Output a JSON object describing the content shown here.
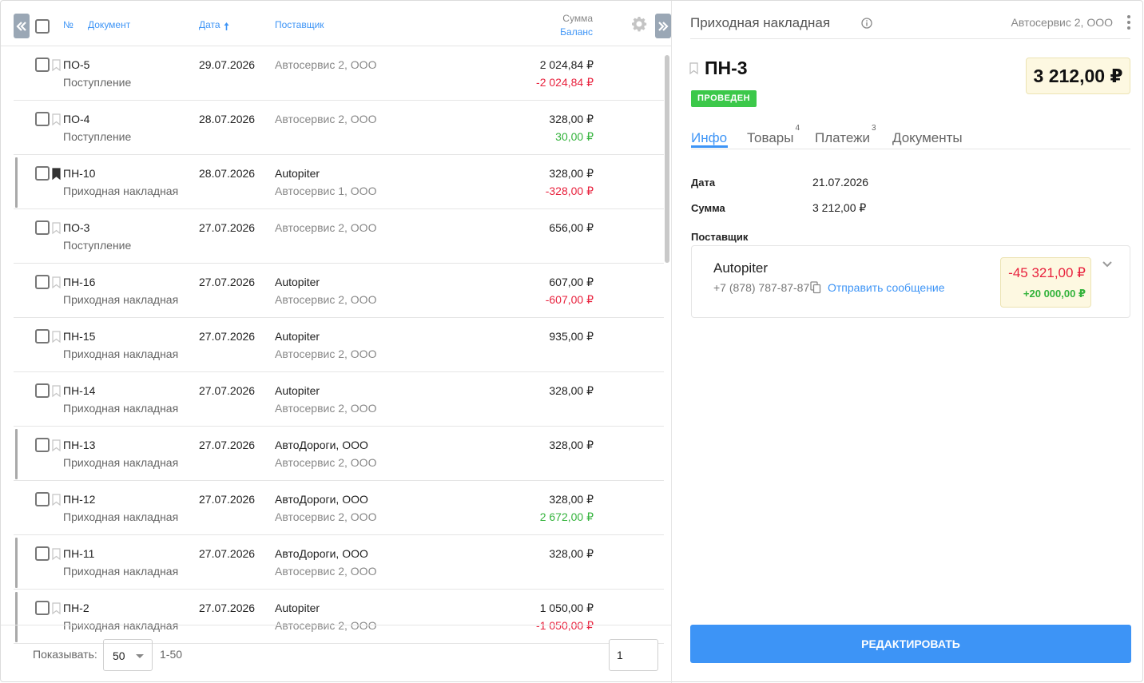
{
  "list": {
    "columns": {
      "number": "№",
      "document": "Документ",
      "date": "Дата",
      "date_sort_icon": "arrow-up-icon",
      "supplier": "Поставщик",
      "sum": "Сумма",
      "balance": "Баланс"
    },
    "rows": [
      {
        "number": "ПО-5",
        "type": "Поступление",
        "date": "29.07.2026",
        "supplier": "Автосервис 2, ООО",
        "supplier2": "",
        "sum": "2 024,84 ₽",
        "balance": "-2 024,84 ₽",
        "balance_sign": "neg",
        "marked": false,
        "bookmarked": false
      },
      {
        "number": "ПО-4",
        "type": "Поступление",
        "date": "28.07.2026",
        "supplier": "Автосервис 2, ООО",
        "supplier2": "",
        "sum": "328,00 ₽",
        "balance": "30,00 ₽",
        "balance_sign": "pos",
        "marked": false,
        "bookmarked": false
      },
      {
        "number": "ПН-10",
        "type": "Приходная накладная",
        "date": "28.07.2026",
        "supplier": "Autopiter",
        "supplier2": "Автосервис 1, ООО",
        "sum": "328,00 ₽",
        "balance": "-328,00 ₽",
        "balance_sign": "neg",
        "marked": true,
        "bookmarked": true
      },
      {
        "number": "ПО-3",
        "type": "Поступление",
        "date": "27.07.2026",
        "supplier": "Автосервис 2, ООО",
        "supplier2": "",
        "sum": "656,00 ₽",
        "balance": "",
        "balance_sign": "none",
        "marked": false,
        "bookmarked": false
      },
      {
        "number": "ПН-16",
        "type": "Приходная накладная",
        "date": "27.07.2026",
        "supplier": "Autopiter",
        "supplier2": "Автосервис 2, ООО",
        "sum": "607,00 ₽",
        "balance": "-607,00 ₽",
        "balance_sign": "neg",
        "marked": false,
        "bookmarked": false
      },
      {
        "number": "ПН-15",
        "type": "Приходная накладная",
        "date": "27.07.2026",
        "supplier": "Autopiter",
        "supplier2": "Автосервис 2, ООО",
        "sum": "935,00 ₽",
        "balance": "",
        "balance_sign": "none",
        "marked": false,
        "bookmarked": false
      },
      {
        "number": "ПН-14",
        "type": "Приходная накладная",
        "date": "27.07.2026",
        "supplier": "Autopiter",
        "supplier2": "Автосервис 2, ООО",
        "sum": "328,00 ₽",
        "balance": "",
        "balance_sign": "none",
        "marked": false,
        "bookmarked": false
      },
      {
        "number": "ПН-13",
        "type": "Приходная накладная",
        "date": "27.07.2026",
        "supplier": "АвтоДороги, ООО",
        "supplier2": "Автосервис 2, ООО",
        "sum": "328,00 ₽",
        "balance": "",
        "balance_sign": "none",
        "marked": true,
        "bookmarked": false
      },
      {
        "number": "ПН-12",
        "type": "Приходная накладная",
        "date": "27.07.2026",
        "supplier": "АвтоДороги, ООО",
        "supplier2": "Автосервис 2, ООО",
        "sum": "328,00 ₽",
        "balance": "2 672,00 ₽",
        "balance_sign": "pos",
        "marked": false,
        "bookmarked": false
      },
      {
        "number": "ПН-11",
        "type": "Приходная накладная",
        "date": "27.07.2026",
        "supplier": "АвтоДороги, ООО",
        "supplier2": "Автосервис 2, ООО",
        "sum": "328,00 ₽",
        "balance": "",
        "balance_sign": "none",
        "marked": true,
        "bookmarked": false
      },
      {
        "number": "ПН-2",
        "type": "Приходная накладная",
        "date": "27.07.2026",
        "supplier": "Autopiter",
        "supplier2": "Автосервис 2, ООО",
        "sum": "1 050,00 ₽",
        "balance": "-1 050,00 ₽",
        "balance_sign": "neg",
        "marked": true,
        "bookmarked": false
      }
    ]
  },
  "footer": {
    "show_label": "Показывать:",
    "per_page": "50",
    "range": "1-50",
    "page": "1"
  },
  "detail": {
    "title": "Приходная накладная",
    "company": "Автосервис 2, ООО",
    "doc_number": "ПН-3",
    "total": "3 212,00 ₽",
    "status": "ПРОВЕДЕН",
    "tabs": [
      {
        "label": "Инфо",
        "count": ""
      },
      {
        "label": "Товары",
        "count": "4"
      },
      {
        "label": "Платежи",
        "count": "3"
      },
      {
        "label": "Документы",
        "count": ""
      }
    ],
    "fields": {
      "date_label": "Дата",
      "date_value": "21.07.2026",
      "sum_label": "Сумма",
      "sum_value": "3 212,00 ₽",
      "supplier_label": "Поставщик"
    },
    "supplier": {
      "name": "Autopiter",
      "phone": "+7 (878) 787-87-87",
      "message_link": "Отправить сообщение",
      "balance_negative": "-45 321,00 ₽",
      "balance_positive": "+20 000,00 ₽"
    },
    "edit_button": "Редактировать"
  },
  "colors": {
    "accent": "#3d94f6",
    "negative": "#e8213d",
    "positive": "#34b33c",
    "status_green": "#3cc84a",
    "highlight_bg": "#fdf8e1"
  }
}
